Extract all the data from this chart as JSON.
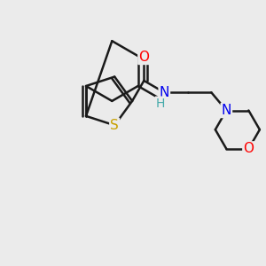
{
  "bg_color": "#ebebeb",
  "bond_color": "#1a1a1a",
  "bond_width": 1.8,
  "atom_colors": {
    "S": "#c8a000",
    "N": "#0000ee",
    "O": "#ff0000",
    "C": "#1a1a1a",
    "H": "#44aaaa"
  },
  "font_size": 11,
  "fig_size": [
    3.0,
    3.0
  ],
  "dpi": 100
}
